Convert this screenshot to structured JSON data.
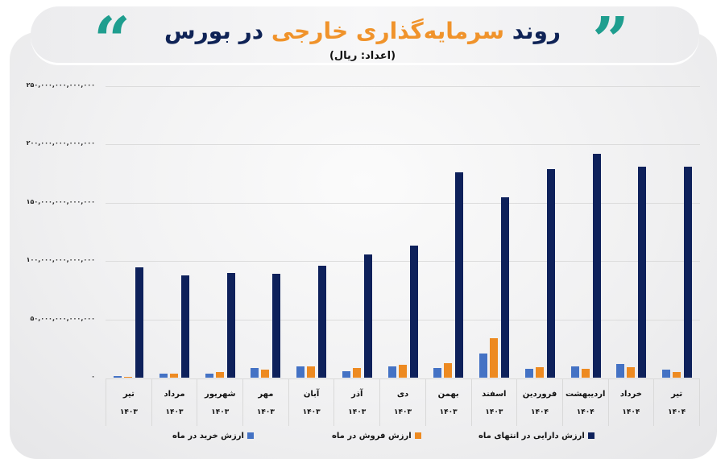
{
  "header": {
    "title_prefix": "روند",
    "title_highlight": "سرمایه‌گذاری خارجی",
    "title_suffix": "در بورس",
    "subtitle": "(اعداد: ریال)",
    "quote_open": "“",
    "quote_close": "”",
    "colors": {
      "navy": "#0f2356",
      "orange": "#f0932b",
      "teal": "#1f9e8f"
    }
  },
  "y_axis": {
    "ticks": [
      {
        "label": "۲۵۰,۰۰۰,۰۰۰,۰۰۰,۰۰۰",
        "value": 250000000000000
      },
      {
        "label": "۲۰۰,۰۰۰,۰۰۰,۰۰۰,۰۰۰",
        "value": 200000000000000
      },
      {
        "label": "۱۵۰,۰۰۰,۰۰۰,۰۰۰,۰۰۰",
        "value": 150000000000000
      },
      {
        "label": "۱۰۰,۰۰۰,۰۰۰,۰۰۰,۰۰۰",
        "value": 100000000000000
      },
      {
        "label": "۵۰,۰۰۰,۰۰۰,۰۰۰,۰۰۰",
        "value": 50000000000000
      },
      {
        "label": "۰",
        "value": 0
      }
    ]
  },
  "legend": {
    "buy": "ارزش خرید در ماه",
    "sell": "ارزش فروش در ماه",
    "asset": "ارزش دارایی در انتهای ماه"
  },
  "chart_data": {
    "type": "bar",
    "title": "روند سرمایه‌گذاری خارجی در بورس",
    "subtitle": "(اعداد: ریال)",
    "xlabel": "",
    "ylabel": "ریال",
    "ylim": [
      0,
      250000000000000
    ],
    "grid": true,
    "legend_position": "bottom",
    "categories": [
      {
        "month": "تیر",
        "year": "۱۴۰۳"
      },
      {
        "month": "مرداد",
        "year": "۱۴۰۳"
      },
      {
        "month": "شهریور",
        "year": "۱۴۰۳"
      },
      {
        "month": "مهر",
        "year": "۱۴۰۳"
      },
      {
        "month": "آبان",
        "year": "۱۴۰۳"
      },
      {
        "month": "آذر",
        "year": "۱۴۰۳"
      },
      {
        "month": "دی",
        "year": "۱۴۰۳"
      },
      {
        "month": "بهمن",
        "year": "۱۴۰۳"
      },
      {
        "month": "اسفند",
        "year": "۱۴۰۳"
      },
      {
        "month": "فروردین",
        "year": "۱۴۰۴"
      },
      {
        "month": "اردیبهشت",
        "year": "۱۴۰۴"
      },
      {
        "month": "خرداد",
        "year": "۱۴۰۴"
      },
      {
        "month": "تیر",
        "year": "۱۴۰۴"
      }
    ],
    "series": [
      {
        "name": "ارزش خرید در ماه",
        "color": "#4472c4",
        "values": [
          1500000000000.0,
          3800000000000.0,
          3200000000000.0,
          8500000000000.0,
          9900000000000.0,
          5500000000000.0,
          9900000000000.0,
          8500000000000.0,
          21000000000000.0,
          7400000000000.0,
          9900000000000.0,
          11500000000000.0,
          6700000000000.0
        ]
      },
      {
        "name": "ارزش فروش در ماه",
        "color": "#ed8a21",
        "values": [
          1000000000000.0,
          3800000000000.0,
          4500000000000.0,
          6900000000000.0,
          9900000000000.0,
          8000000000000.0,
          11000000000000.0,
          12200000000000.0,
          34000000000000.0,
          8700000000000.0,
          7400000000000.0,
          9200000000000.0,
          5000000000000.0
        ]
      },
      {
        "name": "ارزش دارایی در انتهای ماه",
        "color": "#0e215b",
        "values": [
          94500000000000.0,
          88000000000000.0,
          90000000000000.0,
          89000000000000.0,
          96000000000000.0,
          106000000000000.0,
          113000000000000.0,
          176000000000000.0,
          155000000000000.0,
          179000000000000.0,
          192000000000000.0,
          181000000000000.0,
          181000000000000.0
        ]
      }
    ]
  }
}
